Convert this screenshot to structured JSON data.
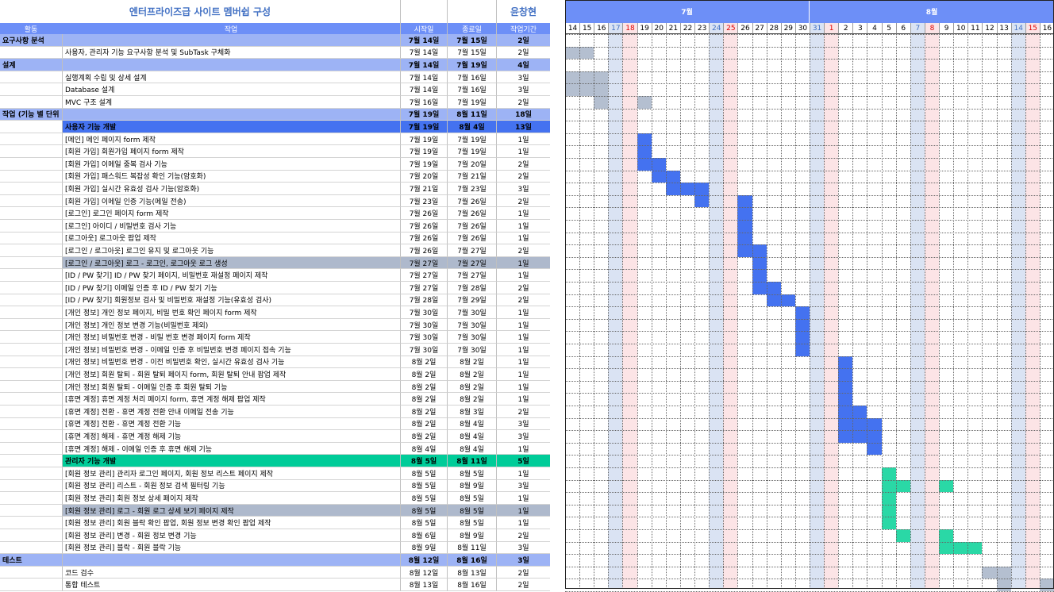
{
  "sheet": {
    "title": "엔터프라이즈급 사이트 멤버쉽 구성",
    "owner": "윤창현",
    "headers": {
      "activity": "활동",
      "task": "작업",
      "start": "시작일",
      "end": "종료일",
      "duration": "작업기간"
    },
    "months": [
      {
        "label": "7월"
      },
      {
        "label": "8월"
      }
    ],
    "days": [
      {
        "d": "14",
        "type": "n"
      },
      {
        "d": "15",
        "type": "n"
      },
      {
        "d": "16",
        "type": "n"
      },
      {
        "d": "17",
        "type": "sat"
      },
      {
        "d": "18",
        "type": "sun"
      },
      {
        "d": "19",
        "type": "n"
      },
      {
        "d": "20",
        "type": "n"
      },
      {
        "d": "21",
        "type": "n"
      },
      {
        "d": "22",
        "type": "n"
      },
      {
        "d": "23",
        "type": "n"
      },
      {
        "d": "24",
        "type": "sat"
      },
      {
        "d": "25",
        "type": "sun"
      },
      {
        "d": "26",
        "type": "n"
      },
      {
        "d": "27",
        "type": "n"
      },
      {
        "d": "28",
        "type": "n"
      },
      {
        "d": "29",
        "type": "n"
      },
      {
        "d": "30",
        "type": "n"
      },
      {
        "d": "31",
        "type": "sat"
      },
      {
        "d": "1",
        "type": "sun"
      },
      {
        "d": "2",
        "type": "n"
      },
      {
        "d": "3",
        "type": "n"
      },
      {
        "d": "4",
        "type": "n"
      },
      {
        "d": "5",
        "type": "n"
      },
      {
        "d": "6",
        "type": "n"
      },
      {
        "d": "7",
        "type": "sat"
      },
      {
        "d": "8",
        "type": "sun"
      },
      {
        "d": "9",
        "type": "n"
      },
      {
        "d": "10",
        "type": "n"
      },
      {
        "d": "11",
        "type": "n"
      },
      {
        "d": "12",
        "type": "n"
      },
      {
        "d": "13",
        "type": "n"
      },
      {
        "d": "14",
        "type": "sat"
      },
      {
        "d": "15",
        "type": "sun"
      },
      {
        "d": "16",
        "type": "n"
      }
    ],
    "colors": {
      "header": "#6d8ff7",
      "sub": "#4472f0",
      "admin": "#00cc99",
      "gray": "#aeb9cc",
      "sat": "#dae3f3",
      "sun": "#fce4e6",
      "barBlue": "#4472f0",
      "barGreen": "#2ad8a6",
      "barGray": "#b4bfd0"
    },
    "rows": [
      {
        "activity": "요구사항 분석",
        "task": "",
        "start": "7월 14일",
        "end": "7월 15일",
        "dur": "2일",
        "style": "cat",
        "s": 0,
        "len": 0,
        "bar": ""
      },
      {
        "activity": "",
        "task": "사용자, 관리자 기능 요구사항 분석 및 SubTask 구체화",
        "start": "7월 14일",
        "end": "7월 15일",
        "dur": "2일",
        "style": "item",
        "s": 0,
        "len": 2,
        "bar": "gray"
      },
      {
        "activity": "설계",
        "task": "",
        "start": "7월 14일",
        "end": "7월 19일",
        "dur": "4일",
        "style": "cat",
        "s": 0,
        "len": 0,
        "bar": ""
      },
      {
        "activity": "",
        "task": "실행계획 수립 및 상세 설계",
        "start": "7월 14일",
        "end": "7월 16일",
        "dur": "3일",
        "style": "item",
        "s": 0,
        "len": 3,
        "bar": "gray"
      },
      {
        "activity": "",
        "task": "Database 설계",
        "start": "7월 14일",
        "end": "7월 16일",
        "dur": "3일",
        "style": "item",
        "s": 0,
        "len": 3,
        "bar": "gray"
      },
      {
        "activity": "",
        "task": "MVC 구조 설계",
        "start": "7월 16일",
        "end": "7월 19일",
        "dur": "2일",
        "style": "item",
        "s": 2,
        "len": 1,
        "bar": "gray",
        "s2": 5,
        "len2": 1
      },
      {
        "activity": "작업 (기능 별 단위 테스트 진행)",
        "task": "",
        "start": "7월 19일",
        "end": "8월 11일",
        "dur": "18일",
        "style": "cat",
        "s": 0,
        "len": 0,
        "bar": ""
      },
      {
        "activity": "",
        "task": "사용자 기능 개발",
        "start": "7월 19일",
        "end": "8월 4일",
        "dur": "13일",
        "style": "sub",
        "s": 0,
        "len": 0,
        "bar": ""
      },
      {
        "activity": "",
        "task": "[메인] 메인 페이지 form 제작",
        "start": "7월 19일",
        "end": "7월 19일",
        "dur": "1일",
        "style": "item",
        "s": 5,
        "len": 1,
        "bar": "blue"
      },
      {
        "activity": "",
        "task": "[회원 가입] 회원가입 페이지 form 제작",
        "start": "7월 19일",
        "end": "7월 19일",
        "dur": "1일",
        "style": "item",
        "s": 5,
        "len": 1,
        "bar": "blue"
      },
      {
        "activity": "",
        "task": "[회원 가입] 이메일 중복 검사 기능",
        "start": "7월 19일",
        "end": "7월 20일",
        "dur": "2일",
        "style": "item",
        "s": 5,
        "len": 2,
        "bar": "blue"
      },
      {
        "activity": "",
        "task": "[회원 가입] 패스워드 복잡성 확인 기능(암호화)",
        "start": "7월 20일",
        "end": "7월 21일",
        "dur": "2일",
        "style": "item",
        "s": 6,
        "len": 2,
        "bar": "blue"
      },
      {
        "activity": "",
        "task": "[회원 가입] 실시간 유효성 검사 기능(암호화)",
        "start": "7월 21일",
        "end": "7월 23일",
        "dur": "3일",
        "style": "item",
        "s": 7,
        "len": 3,
        "bar": "blue"
      },
      {
        "activity": "",
        "task": "[회원 가입] 이메일 인증 기능(메일 전송)",
        "start": "7월 23일",
        "end": "7월 26일",
        "dur": "2일",
        "style": "item",
        "s": 9,
        "len": 1,
        "bar": "blue",
        "s2": 12,
        "len2": 1
      },
      {
        "activity": "",
        "task": "[로그인] 로그인 페이지 form 제작",
        "start": "7월 26일",
        "end": "7월 26일",
        "dur": "1일",
        "style": "item",
        "s": 12,
        "len": 1,
        "bar": "blue"
      },
      {
        "activity": "",
        "task": "[로그인] 아이디 / 비밀번호 검사 기능",
        "start": "7월 26일",
        "end": "7월 26일",
        "dur": "1일",
        "style": "item",
        "s": 12,
        "len": 1,
        "bar": "blue"
      },
      {
        "activity": "",
        "task": "[로그아웃] 로그아웃 팝업 제작",
        "start": "7월 26일",
        "end": "7월 26일",
        "dur": "1일",
        "style": "item",
        "s": 12,
        "len": 1,
        "bar": "blue"
      },
      {
        "activity": "",
        "task": "[로그인 / 로그아웃] 로그인 유지 및 로그아웃 기능",
        "start": "7월 26일",
        "end": "7월 27일",
        "dur": "2일",
        "style": "item",
        "s": 12,
        "len": 2,
        "bar": "blue"
      },
      {
        "activity": "",
        "task": "[로그인 / 로그아웃] 로그 - 로그인, 로그아웃 로그 생성",
        "start": "7월 27일",
        "end": "7월 27일",
        "dur": "1일",
        "style": "grayrow",
        "s": 13,
        "len": 1,
        "bar": "blue"
      },
      {
        "activity": "",
        "task": "[ID / PW 찾기] ID / PW 찾기 페이지, 비밀번호 재설정 페이지 제작",
        "start": "7월 27일",
        "end": "7월 27일",
        "dur": "1일",
        "style": "item",
        "s": 13,
        "len": 1,
        "bar": "blue"
      },
      {
        "activity": "",
        "task": "[ID / PW 찾기] 이메일 인증 후 ID / PW 찾기 기능",
        "start": "7월 27일",
        "end": "7월 28일",
        "dur": "2일",
        "style": "item",
        "s": 13,
        "len": 2,
        "bar": "blue"
      },
      {
        "activity": "",
        "task": "[ID / PW 찾기] 회원정보 검사 및 비밀번호 재설정 기능(유효성 검사)",
        "start": "7월 28일",
        "end": "7월 29일",
        "dur": "2일",
        "style": "item",
        "s": 14,
        "len": 2,
        "bar": "blue"
      },
      {
        "activity": "",
        "task": "[개인 정보] 개인 정보 페이지, 비밀 번호 확인 페이지 form 제작",
        "start": "7월 30일",
        "end": "7월 30일",
        "dur": "1일",
        "style": "item",
        "s": 16,
        "len": 1,
        "bar": "blue"
      },
      {
        "activity": "",
        "task": "[개인 정보] 개인 정보 변경 기능(비밀번호 제외)",
        "start": "7월 30일",
        "end": "7월 30일",
        "dur": "1일",
        "style": "item",
        "s": 16,
        "len": 1,
        "bar": "blue"
      },
      {
        "activity": "",
        "task": "[개인 정보] 비밀번호 변경 - 비밀 번호 변경 페이지 form 제작",
        "start": "7월 30일",
        "end": "7월 30일",
        "dur": "1일",
        "style": "item",
        "s": 16,
        "len": 1,
        "bar": "blue"
      },
      {
        "activity": "",
        "task": "[개인 정보] 비밀번호 변경 - 이메일 인증 후 비밀번호 변경 페이지 접속 기능",
        "start": "7월 30일",
        "end": "7월 30일",
        "dur": "1일",
        "style": "item",
        "s": 16,
        "len": 1,
        "bar": "blue"
      },
      {
        "activity": "",
        "task": "[개인 정보] 비밀번호 변경 - 이전 비밀번호 확인, 실시간 유효성 검사 기능",
        "start": "8월 2일",
        "end": "8월 2일",
        "dur": "1일",
        "style": "item",
        "s": 19,
        "len": 1,
        "bar": "blue"
      },
      {
        "activity": "",
        "task": "[개인 정보] 회원 탈퇴 - 회원 탈퇴 페이지 form, 회원 탈퇴 안내 팝업 제작",
        "start": "8월 2일",
        "end": "8월 2일",
        "dur": "1일",
        "style": "item",
        "s": 19,
        "len": 1,
        "bar": "blue"
      },
      {
        "activity": "",
        "task": "[개인 정보] 회원 탈퇴 - 이메일 인증 후 회원 탈퇴 기능",
        "start": "8월 2일",
        "end": "8월 2일",
        "dur": "1일",
        "style": "item",
        "s": 19,
        "len": 1,
        "bar": "blue"
      },
      {
        "activity": "",
        "task": "[휴면 계정] 휴면 계정 처리 페이지 form, 휴면 계정 해제 팝업 제작",
        "start": "8월 2일",
        "end": "8월 2일",
        "dur": "1일",
        "style": "item",
        "s": 19,
        "len": 1,
        "bar": "blue"
      },
      {
        "activity": "",
        "task": "[휴면 계정] 전환 - 휴면 계정 전환 안내 이메일 전송 기능",
        "start": "8월 2일",
        "end": "8월 3일",
        "dur": "2일",
        "style": "item",
        "s": 19,
        "len": 2,
        "bar": "blue"
      },
      {
        "activity": "",
        "task": "[휴면 계정] 전환 - 휴면 계정 전환 기능",
        "start": "8월 2일",
        "end": "8월 4일",
        "dur": "3일",
        "style": "item",
        "s": 19,
        "len": 3,
        "bar": "blue"
      },
      {
        "activity": "",
        "task": "[휴면 계정] 해제 - 휴면 계정 해제 기능",
        "start": "8월 2일",
        "end": "8월 4일",
        "dur": "3일",
        "style": "item",
        "s": 19,
        "len": 3,
        "bar": "blue"
      },
      {
        "activity": "",
        "task": "[휴면 계정] 해제 - 이메일 인증 후 휴면 해제 기능",
        "start": "8월 4일",
        "end": "8월 4일",
        "dur": "1일",
        "style": "item",
        "s": 21,
        "len": 1,
        "bar": "blue"
      },
      {
        "activity": "",
        "task": "관리자 기능 개발",
        "start": "8월 5일",
        "end": "8월 11일",
        "dur": "5일",
        "style": "admin",
        "s": 0,
        "len": 0,
        "bar": ""
      },
      {
        "activity": "",
        "task": "[회원 정보 관리] 관리자 로그인 페이지, 회원 정보 리스트 페이지 제작",
        "start": "8월 5일",
        "end": "8월 5일",
        "dur": "1일",
        "style": "item",
        "s": 22,
        "len": 1,
        "bar": "green"
      },
      {
        "activity": "",
        "task": "[회원 정보 관리] 리스트 - 회원 정보 검색 필터링 기능",
        "start": "8월 5일",
        "end": "8월 9일",
        "dur": "3일",
        "style": "item",
        "s": 22,
        "len": 2,
        "bar": "green",
        "s2": 26,
        "len2": 1
      },
      {
        "activity": "",
        "task": "[회원 정보 관리] 회원 정보 상세 페이지 제작",
        "start": "8월 5일",
        "end": "8월 5일",
        "dur": "1일",
        "style": "item",
        "s": 22,
        "len": 1,
        "bar": "green"
      },
      {
        "activity": "",
        "task": "[회원 정보 관리] 로그 - 회원 로그 상세 보기 페이지 제작",
        "start": "8월 5일",
        "end": "8월 5일",
        "dur": "1일",
        "style": "grayrow",
        "s": 22,
        "len": 1,
        "bar": "green"
      },
      {
        "activity": "",
        "task": "[회원 정보 관리] 회원 블락 확인 팝업, 회원 정보 변경 확인 팝업 제작",
        "start": "8월 5일",
        "end": "8월 5일",
        "dur": "1일",
        "style": "item",
        "s": 22,
        "len": 1,
        "bar": "green"
      },
      {
        "activity": "",
        "task": "[회원 정보 관리] 변경 - 회원 정보 변경 기능",
        "start": "8월 6일",
        "end": "8월 9일",
        "dur": "2일",
        "style": "item",
        "s": 23,
        "len": 1,
        "bar": "green",
        "s2": 26,
        "len2": 1
      },
      {
        "activity": "",
        "task": "[회원 정보 관리] 블락 - 회원 블락 기능",
        "start": "8월 9일",
        "end": "8월 11일",
        "dur": "3일",
        "style": "item",
        "s": 26,
        "len": 3,
        "bar": "green"
      },
      {
        "activity": "테스트",
        "task": "",
        "start": "8월 12일",
        "end": "8월 16일",
        "dur": "3일",
        "style": "cat",
        "s": 0,
        "len": 0,
        "bar": ""
      },
      {
        "activity": "",
        "task": "코드 검수",
        "start": "8월 12일",
        "end": "8월 13일",
        "dur": "2일",
        "style": "item",
        "s": 29,
        "len": 2,
        "bar": "gray"
      },
      {
        "activity": "",
        "task": "통합 테스트",
        "start": "8월 13일",
        "end": "8월 16일",
        "dur": "2일",
        "style": "item",
        "s": 30,
        "len": 1,
        "bar": "gray",
        "s2": 33,
        "len2": 1
      }
    ]
  }
}
